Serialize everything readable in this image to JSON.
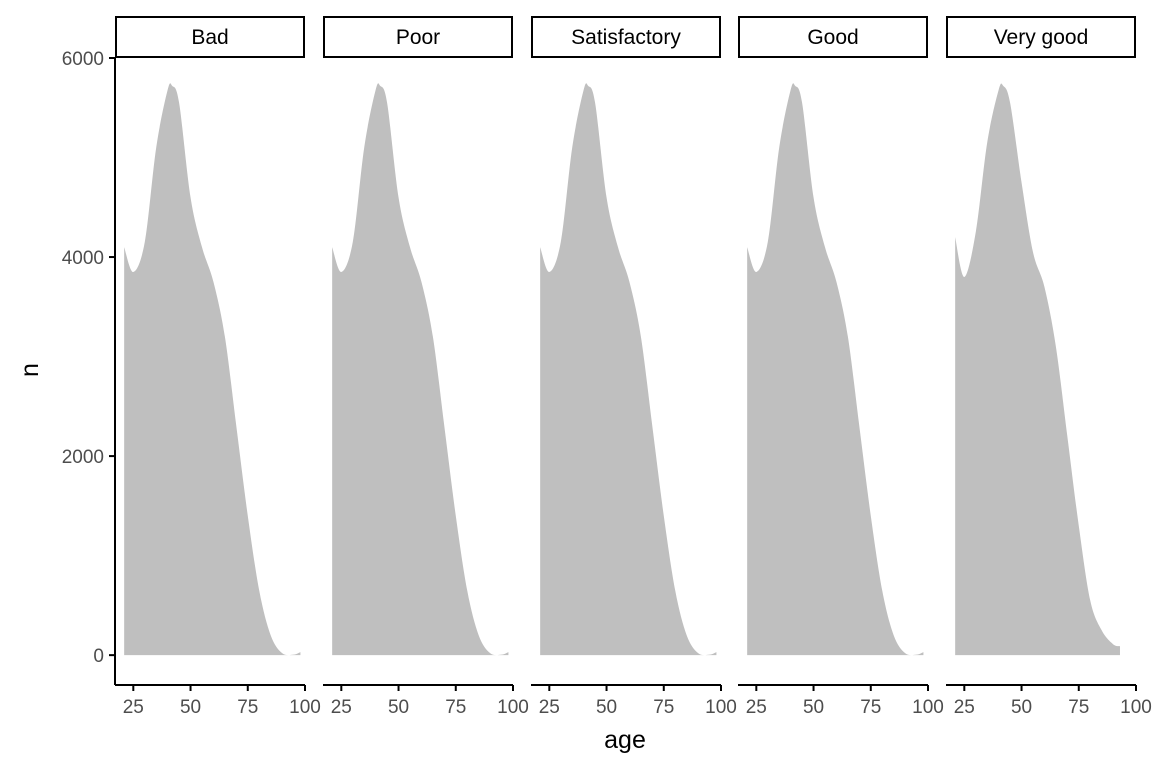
{
  "chart_data": {
    "type": "area",
    "xlabel": "age",
    "ylabel": "n",
    "xlim": [
      17,
      100
    ],
    "ylim": [
      -300,
      6000
    ],
    "x_ticks": [
      25,
      50,
      75,
      100
    ],
    "y_ticks": [
      0,
      2000,
      4000,
      6000
    ],
    "grid": false,
    "colors": {
      "fill": "#bfbfbf",
      "axis": "#000000",
      "tick_text": "#4d4d4d"
    },
    "facets": [
      {
        "label": "Bad",
        "x": [
          21,
          25,
          30,
          35,
          40,
          42,
          45,
          50,
          55,
          60,
          65,
          70,
          75,
          80,
          85,
          90,
          95,
          98
        ],
        "y": [
          4100,
          3850,
          4150,
          5100,
          5680,
          5720,
          5550,
          4600,
          4100,
          3750,
          3200,
          2300,
          1400,
          650,
          200,
          20,
          5,
          30
        ]
      },
      {
        "label": "Poor",
        "x": [
          21,
          25,
          30,
          35,
          40,
          42,
          45,
          50,
          55,
          60,
          65,
          70,
          75,
          80,
          85,
          90,
          95,
          98
        ],
        "y": [
          4100,
          3850,
          4150,
          5100,
          5680,
          5720,
          5550,
          4600,
          4100,
          3750,
          3200,
          2300,
          1400,
          650,
          200,
          20,
          5,
          30
        ]
      },
      {
        "label": "Satisfactory",
        "x": [
          21,
          25,
          30,
          35,
          40,
          42,
          45,
          50,
          55,
          60,
          65,
          70,
          75,
          80,
          85,
          90,
          95,
          98
        ],
        "y": [
          4100,
          3850,
          4150,
          5100,
          5680,
          5720,
          5550,
          4600,
          4100,
          3750,
          3200,
          2300,
          1400,
          650,
          200,
          20,
          5,
          30
        ]
      },
      {
        "label": "Good",
        "x": [
          21,
          25,
          30,
          35,
          40,
          42,
          45,
          50,
          55,
          60,
          65,
          70,
          75,
          80,
          85,
          90,
          95,
          98
        ],
        "y": [
          4100,
          3850,
          4150,
          5100,
          5680,
          5720,
          5550,
          4600,
          4100,
          3750,
          3200,
          2300,
          1400,
          650,
          200,
          20,
          5,
          30
        ]
      },
      {
        "label": "Very good",
        "x": [
          21,
          25,
          30,
          35,
          40,
          42,
          45,
          50,
          55,
          60,
          65,
          70,
          75,
          80,
          85,
          90,
          93
        ],
        "y": [
          4200,
          3800,
          4250,
          5150,
          5680,
          5720,
          5550,
          4750,
          4050,
          3700,
          3100,
          2200,
          1300,
          550,
          250,
          110,
          90
        ]
      }
    ]
  }
}
